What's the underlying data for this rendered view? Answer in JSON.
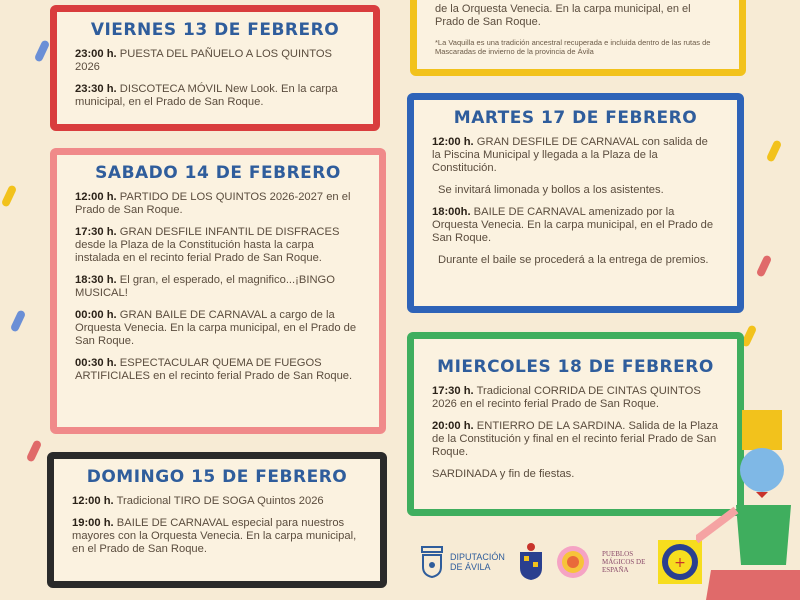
{
  "top_box": {
    "lines": [
      "de la Orquesta Venecia. En la carpa municipal, en el Prado de San Roque."
    ],
    "note": "*La Vaquilla es una tradición ancestral recuperada e incluida dentro de las rutas de Mascaradas de invierno de la provincia de Ávila"
  },
  "friday": {
    "title": "VIERNES 13 DE FEBRERO",
    "events": [
      {
        "time": "23:00 h.",
        "text": "PUESTA DEL PAÑUELO A LOS QUINTOS 2026"
      },
      {
        "time": "23:30 h.",
        "text": "DISCOTECA MÓVIL New Look. En la carpa municipal, en el Prado de San Roque."
      }
    ]
  },
  "saturday": {
    "title": "SABADO 14 DE FEBRERO",
    "events": [
      {
        "time": "12:00 h.",
        "text": "PARTIDO DE LOS QUINTOS 2026-2027 en el Prado de San Roque."
      },
      {
        "time": "17:30 h.",
        "text": "GRAN DESFILE INFANTIL DE DISFRACES desde la Plaza de la Constitución hasta la carpa instalada en el recinto ferial Prado de San Roque."
      },
      {
        "time": "18:30 h.",
        "text": "El gran, el esperado, el magnifico...¡BINGO MUSICAL!"
      },
      {
        "time": "00:00 h.",
        "text": "GRAN BAILE DE CARNAVAL a cargo de la Orquesta Venecia. En la carpa municipal, en el Prado de San Roque."
      },
      {
        "time": "00:30 h.",
        "text": "ESPECTACULAR QUEMA DE FUEGOS ARTIFICIALES en el recinto ferial Prado de San Roque."
      }
    ]
  },
  "sunday": {
    "title": "DOMINGO 15 DE FEBRERO",
    "events": [
      {
        "time": "12:00 h.",
        "text": "Tradicional TIRO DE SOGA Quintos 2026"
      },
      {
        "time": "19:00 h.",
        "text": "BAILE DE CARNAVAL especial para nuestros mayores con la Orquesta Venecia. En la carpa municipal, en el Prado de San Roque."
      }
    ]
  },
  "tuesday": {
    "title": "MARTES 17 DE FEBRERO",
    "events": [
      {
        "time": "12:00 h.",
        "text": "GRAN DESFILE DE CARNAVAL con salida de la Piscina Municipal y llegada a la Plaza de la Constitución."
      },
      {
        "time": "",
        "text": "Se invitará limonada y bollos a los asistentes."
      },
      {
        "time": "18:00h.",
        "text": "BAILE DE CARNAVAL amenizado por la Orquesta Venecia. En la carpa municipal, en el Prado de San Roque."
      },
      {
        "time": "",
        "text": "Durante el baile se procederá a la entrega de premios."
      }
    ]
  },
  "wednesday": {
    "title": "MIERCOLES 18 DE FEBRERO",
    "events": [
      {
        "time": "17:30 h.",
        "text": "Tradicional CORRIDA DE CINTAS QUINTOS 2026 en el recinto ferial Prado de San Roque."
      },
      {
        "time": "20:00 h.",
        "text": "ENTIERRO DE LA SARDINA. Salida de la Plaza de la Constitución y final en el recinto ferial Prado de San Roque."
      },
      {
        "time": "",
        "text": "SARDINADA y fin de fiestas."
      }
    ]
  },
  "logos": {
    "diputacion": "DIPUTACIÓN DE ÁVILA",
    "pueblos": "PUEBLOS MÁGICOS DE ESPAÑA"
  },
  "colors": {
    "title": "#2f5d9c",
    "red": "#d93d3d",
    "pink": "#f08a8a",
    "black": "#2a2a2a",
    "yellow": "#f2c21c",
    "blue": "#2e63b8",
    "green": "#3fae5e"
  }
}
